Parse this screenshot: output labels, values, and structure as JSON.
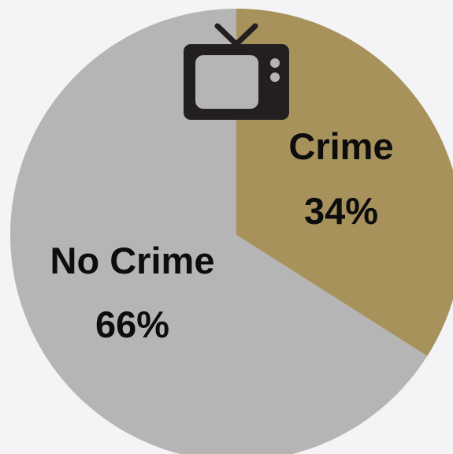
{
  "chart_data": {
    "type": "pie",
    "slices": [
      {
        "label": "Crime",
        "value": 34,
        "value_label": "34%",
        "color": "#a8925c"
      },
      {
        "label": "No Crime",
        "value": 66,
        "value_label": "66%",
        "color": "#b5b5b5"
      }
    ],
    "start_angle": "top (12 o'clock)",
    "direction": "clockwise",
    "legend": "none",
    "icon": "television-icon",
    "background_color": "#f4f4f6",
    "icon_color": "#231f20"
  }
}
